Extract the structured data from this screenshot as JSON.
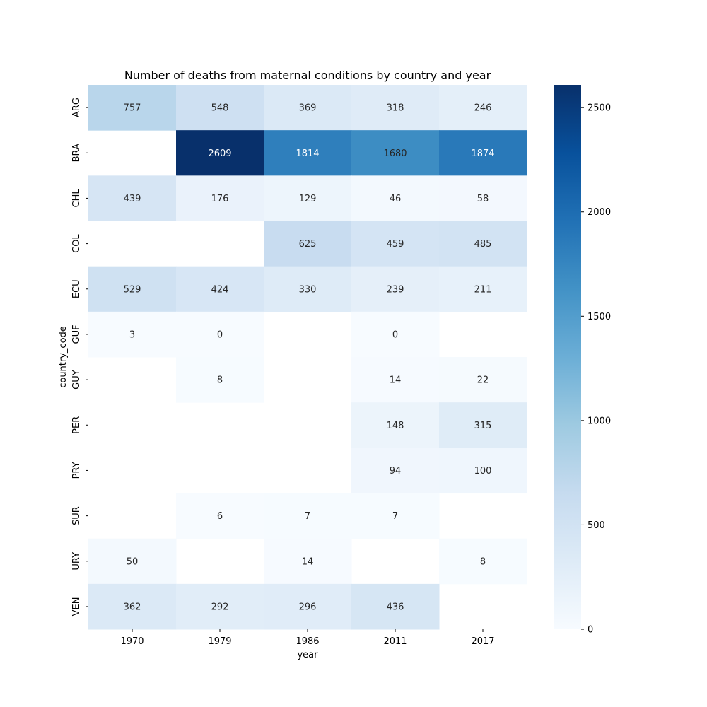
{
  "chart_data": {
    "type": "heatmap",
    "title": "Number of deaths from maternal conditions by country and year",
    "xlabel": "year",
    "ylabel": "country_code",
    "x_categories": [
      "1970",
      "1979",
      "1986",
      "2011",
      "2017"
    ],
    "y_categories": [
      "ARG",
      "BRA",
      "CHL",
      "COL",
      "ECU",
      "GUF",
      "GUY",
      "PER",
      "PRY",
      "SUR",
      "URY",
      "VEN"
    ],
    "values": [
      [
        757,
        548,
        369,
        318,
        246
      ],
      [
        null,
        2609,
        1814,
        1680,
        1874
      ],
      [
        439,
        176,
        129,
        46,
        58
      ],
      [
        null,
        null,
        625,
        459,
        485
      ],
      [
        529,
        424,
        330,
        239,
        211
      ],
      [
        3,
        0,
        null,
        0,
        null
      ],
      [
        null,
        8,
        null,
        14,
        22
      ],
      [
        null,
        null,
        null,
        148,
        315
      ],
      [
        null,
        null,
        null,
        94,
        100
      ],
      [
        null,
        6,
        7,
        7,
        null
      ],
      [
        50,
        null,
        14,
        null,
        8
      ],
      [
        362,
        292,
        296,
        436,
        null
      ]
    ],
    "colorbar": {
      "colormap": "Blues",
      "vmin": 0,
      "vmax": 2609,
      "ticks": [
        0,
        500,
        1000,
        1500,
        2000,
        2500
      ],
      "tick_labels": [
        "0",
        "500",
        "1000",
        "1500",
        "2000",
        "2500"
      ]
    },
    "annotations": true,
    "grid": false
  }
}
